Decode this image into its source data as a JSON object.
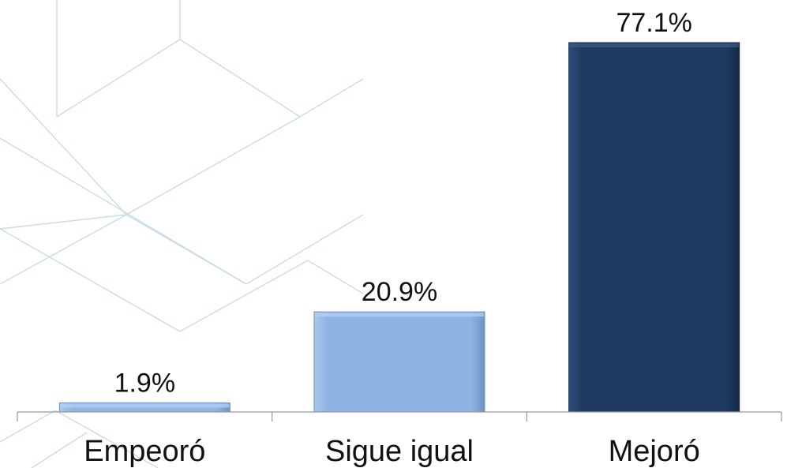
{
  "chart_data": {
    "type": "bar",
    "title": "",
    "xlabel": "",
    "ylabel": "",
    "categories": [
      "Empeoró",
      "Sigue igual",
      "Mejoró"
    ],
    "values": [
      1.9,
      20.9,
      77.1
    ],
    "value_labels": [
      "1.9%",
      "20.9%",
      "77.1%"
    ],
    "unit": "%",
    "ylim": [
      0,
      80
    ],
    "grid": false,
    "legend": "none",
    "bar_colors": [
      "#8EB4E3",
      "#8EB4E3",
      "#1F3A60"
    ],
    "background_decoration": "light-blue-line-pattern",
    "decoration_color": "#C9DCE6"
  }
}
